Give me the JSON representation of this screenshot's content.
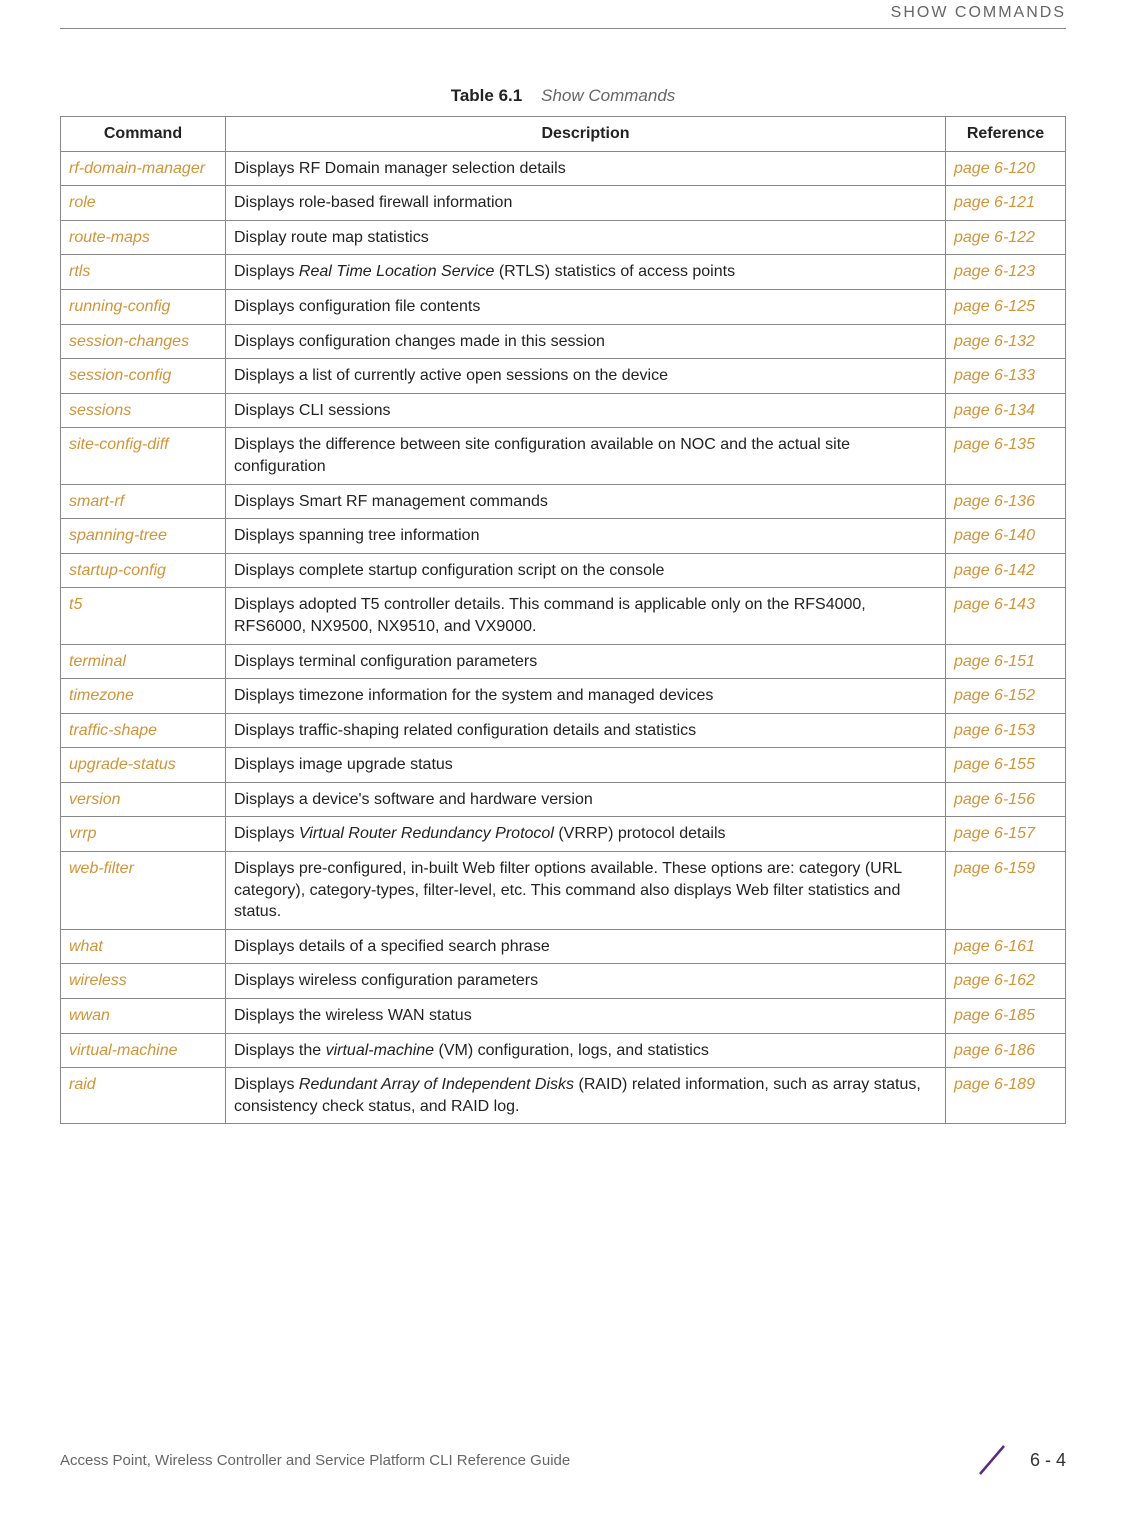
{
  "header": {
    "section_label": "SHOW COMMANDS"
  },
  "caption": {
    "prefix": "Table 6.1",
    "title": "Show Commands"
  },
  "columns": {
    "command": "Command",
    "description": "Description",
    "reference": "Reference"
  },
  "rows": [
    {
      "command": "rf-domain-manager",
      "description": "Displays RF Domain manager selection details",
      "reference": "page 6-120"
    },
    {
      "command": "role",
      "description": "Displays role-based firewall information",
      "reference": "page 6-121"
    },
    {
      "command": "route-maps",
      "description": "Display route map statistics",
      "reference": "page 6-122"
    },
    {
      "command": "rtls",
      "description_html": "Displays <span class=\"ital\">Real Time Location Service</span> (RTLS) statistics of access points",
      "reference": "page 6-123"
    },
    {
      "command": "running-config",
      "description": "Displays configuration file contents",
      "reference": "page 6-125"
    },
    {
      "command": "session-changes",
      "description": "Displays configuration changes made in this session",
      "reference": "page 6-132"
    },
    {
      "command": "session-config",
      "description": "Displays a list of currently active open sessions on the device",
      "reference": "page 6-133"
    },
    {
      "command": "sessions",
      "description": "Displays CLI sessions",
      "reference": "page 6-134"
    },
    {
      "command": "site-config-diff",
      "description": "Displays the difference between site configuration available on NOC and the actual site configuration",
      "reference": "page 6-135"
    },
    {
      "command": "smart-rf",
      "description": "Displays Smart RF management commands",
      "reference": "page 6-136"
    },
    {
      "command": "spanning-tree",
      "description": "Displays spanning tree information",
      "reference": "page 6-140"
    },
    {
      "command": "startup-config",
      "description": "Displays complete startup configuration script on the console",
      "reference": "page 6-142"
    },
    {
      "command": "t5",
      "description": "Displays adopted T5 controller details. This command is applicable only on the RFS4000, RFS6000, NX9500, NX9510, and VX9000.",
      "reference": "page 6-143"
    },
    {
      "command": "terminal",
      "description": "Displays terminal configuration parameters",
      "reference": "page 6-151"
    },
    {
      "command": "timezone",
      "description": "Displays timezone information for the system and managed devices",
      "reference": "page 6-152"
    },
    {
      "command": "traffic-shape",
      "description": "Displays traffic-shaping related configuration details and statistics",
      "reference": "page 6-153"
    },
    {
      "command": "upgrade-status",
      "description": "Displays image upgrade status",
      "reference": "page 6-155"
    },
    {
      "command": "version",
      "description": "Displays a device's software and hardware version",
      "reference": "page 6-156"
    },
    {
      "command": "vrrp",
      "description_html": "Displays <span class=\"ital\">Virtual Router Redundancy Protocol</span> (VRRP) protocol details",
      "reference": "page 6-157"
    },
    {
      "command": "web-filter",
      "description": "Displays pre-configured, in-built Web filter options available. These options are: category (URL category), category-types, filter-level, etc. This command also displays Web filter statistics and status.",
      "reference": "page 6-159"
    },
    {
      "command": "what",
      "description": "Displays details of a specified search phrase",
      "reference": "page 6-161"
    },
    {
      "command": "wireless",
      "description": "Displays wireless configuration parameters",
      "reference": "page 6-162"
    },
    {
      "command": "wwan",
      "description": "Displays the wireless WAN status",
      "reference": "page 6-185"
    },
    {
      "command": "virtual-machine",
      "description_html": "Displays the <span class=\"ital\">virtual-machine</span> (VM) configuration, logs, and statistics",
      "reference": "page 6-186"
    },
    {
      "command": "raid",
      "description_html": "Displays <span class=\"ital\">Redundant Array of Independent Disks</span> (RAID) related information, such as array status, consistency check status, and RAID log.",
      "reference": "page 6-189"
    }
  ],
  "footer": {
    "guide_title": "Access Point, Wireless Controller and Service Platform CLI Reference Guide",
    "page_number": "6 - 4"
  },
  "colors": {
    "link_color": "#d19438",
    "border_color": "#888888",
    "header_text": "#666666",
    "slash_color": "#5b2a86"
  }
}
